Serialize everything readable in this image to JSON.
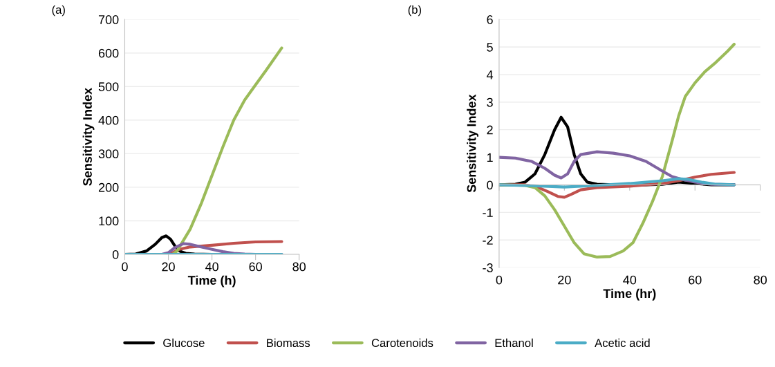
{
  "chart_data": [
    {
      "type": "line",
      "title": "(a)",
      "xlabel": "Time (h)",
      "ylabel": "Sensitivity Index",
      "xlim": [
        0,
        80
      ],
      "xticks": [
        0,
        20,
        40,
        60,
        80
      ],
      "ylim": [
        0,
        700
      ],
      "yticks": [
        0,
        100,
        200,
        300,
        400,
        500,
        600,
        700
      ],
      "grid": "y",
      "legend": "bottom",
      "marker": "none",
      "line_style": "solid",
      "series": [
        {
          "name": "Glucose",
          "color": "#000000",
          "x": [
            0,
            5,
            10,
            14,
            17,
            19,
            21,
            23,
            25,
            28,
            32,
            40
          ],
          "values": [
            0,
            1,
            10,
            30,
            50,
            55,
            45,
            25,
            10,
            3,
            1,
            0
          ]
        },
        {
          "name": "Biomass",
          "color": "#c0504d",
          "x": [
            0,
            10,
            20,
            22,
            25,
            30,
            40,
            50,
            60,
            72
          ],
          "values": [
            0,
            0,
            0,
            5,
            15,
            22,
            27,
            33,
            37,
            38
          ]
        },
        {
          "name": "Carotenoids",
          "color": "#9bbb59",
          "x": [
            0,
            10,
            22,
            24,
            30,
            35,
            40,
            45,
            50,
            55,
            60,
            65,
            72
          ],
          "values": [
            0,
            0,
            0,
            10,
            75,
            150,
            235,
            320,
            400,
            460,
            505,
            550,
            615
          ]
        },
        {
          "name": "Ethanol",
          "color": "#8064a2",
          "x": [
            0,
            10,
            17,
            20,
            23,
            27,
            30,
            35,
            40,
            45,
            50,
            55,
            60,
            72
          ],
          "values": [
            0,
            0,
            0,
            5,
            20,
            32,
            30,
            22,
            15,
            8,
            3,
            1,
            0,
            0
          ]
        },
        {
          "name": "Acetic acid",
          "color": "#4bacc6",
          "x": [
            0,
            20,
            40,
            60,
            72
          ],
          "values": [
            0,
            0,
            0,
            0,
            0
          ]
        }
      ]
    },
    {
      "type": "line",
      "title": "(b)",
      "xlabel": "Time (hr)",
      "ylabel": "Sensitivity Index",
      "xlim": [
        0,
        80
      ],
      "xticks": [
        0,
        20,
        40,
        60,
        80
      ],
      "ylim": [
        -3,
        6
      ],
      "yticks": [
        -3,
        -2,
        -1,
        0,
        1,
        2,
        3,
        4,
        5,
        6
      ],
      "grid": "y",
      "marker": "none",
      "line_style": "solid",
      "series": [
        {
          "color": "#000000",
          "x": [
            0,
            5,
            8,
            11,
            14,
            17,
            19,
            21,
            23,
            25,
            27,
            30,
            35,
            45,
            50,
            55,
            60,
            65,
            72
          ],
          "values": [
            0,
            0.02,
            0.1,
            0.4,
            1.1,
            2.0,
            2.45,
            2.1,
            1.1,
            0.4,
            0.1,
            0.02,
            0,
            0,
            0.02,
            0.1,
            0.05,
            0,
            0
          ]
        },
        {
          "color": "#c0504d",
          "x": [
            0,
            8,
            12,
            15,
            18,
            20,
            22,
            25,
            30,
            40,
            45,
            50,
            55,
            60,
            65,
            72
          ],
          "values": [
            0,
            0,
            -0.1,
            -0.25,
            -0.42,
            -0.45,
            -0.35,
            -0.18,
            -0.1,
            -0.05,
            0,
            0.05,
            0.15,
            0.28,
            0.38,
            0.45
          ]
        },
        {
          "color": "#9bbb59",
          "x": [
            0,
            8,
            11,
            14,
            17,
            20,
            23,
            26,
            30,
            34,
            38,
            41,
            44,
            47,
            50,
            53,
            55,
            57,
            60,
            63,
            66,
            70,
            72
          ],
          "values": [
            0,
            -0.02,
            -0.1,
            -0.4,
            -0.9,
            -1.5,
            -2.1,
            -2.5,
            -2.62,
            -2.6,
            -2.4,
            -2.1,
            -1.4,
            -0.6,
            0.3,
            1.6,
            2.5,
            3.2,
            3.7,
            4.1,
            4.4,
            4.85,
            5.1
          ]
        },
        {
          "color": "#8064a2",
          "x": [
            0,
            5,
            10,
            14,
            17,
            19,
            21,
            23,
            25,
            30,
            35,
            40,
            45,
            50,
            53,
            56,
            60,
            65,
            72
          ],
          "values": [
            1.0,
            0.97,
            0.85,
            0.6,
            0.35,
            0.25,
            0.4,
            0.85,
            1.1,
            1.2,
            1.15,
            1.05,
            0.85,
            0.5,
            0.3,
            0.2,
            0.1,
            0.02,
            0
          ]
        },
        {
          "color": "#4bacc6",
          "x": [
            0,
            10,
            20,
            30,
            40,
            45,
            50,
            55,
            58,
            62,
            66,
            72
          ],
          "values": [
            0,
            -0.03,
            -0.08,
            -0.02,
            0.05,
            0.1,
            0.15,
            0.22,
            0.2,
            0.1,
            0.03,
            0
          ]
        }
      ]
    }
  ]
}
